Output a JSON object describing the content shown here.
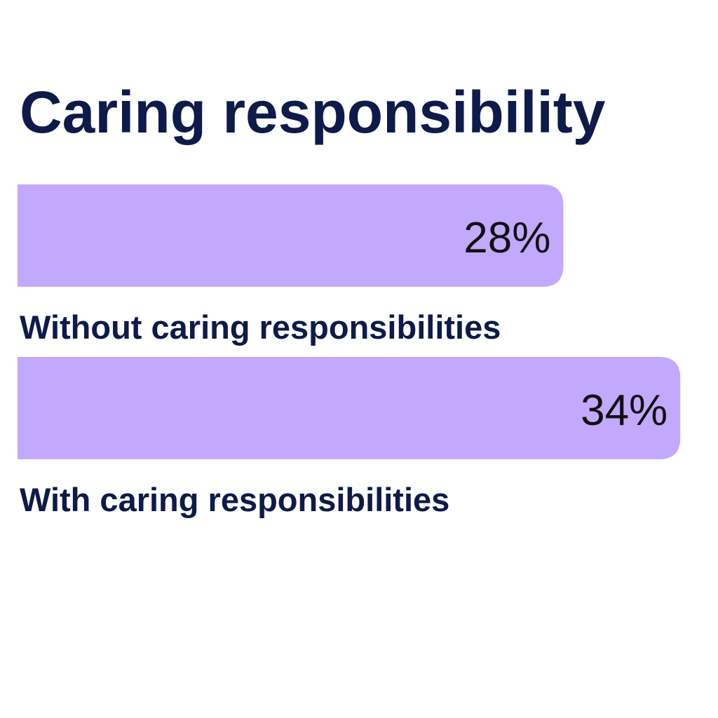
{
  "chart_data": {
    "type": "bar",
    "orientation": "horizontal",
    "title": "Caring responsibility",
    "categories": [
      "Without caring responsibilities",
      "With caring responsibilities"
    ],
    "values": [
      28,
      34
    ],
    "value_labels": [
      "28%",
      "34%"
    ],
    "unit": "%",
    "xlim": [
      0,
      36
    ],
    "grid": false,
    "colors": {
      "bar": "#c3a8ff",
      "text": "#0e1a4a",
      "value_text": "#111111"
    }
  }
}
